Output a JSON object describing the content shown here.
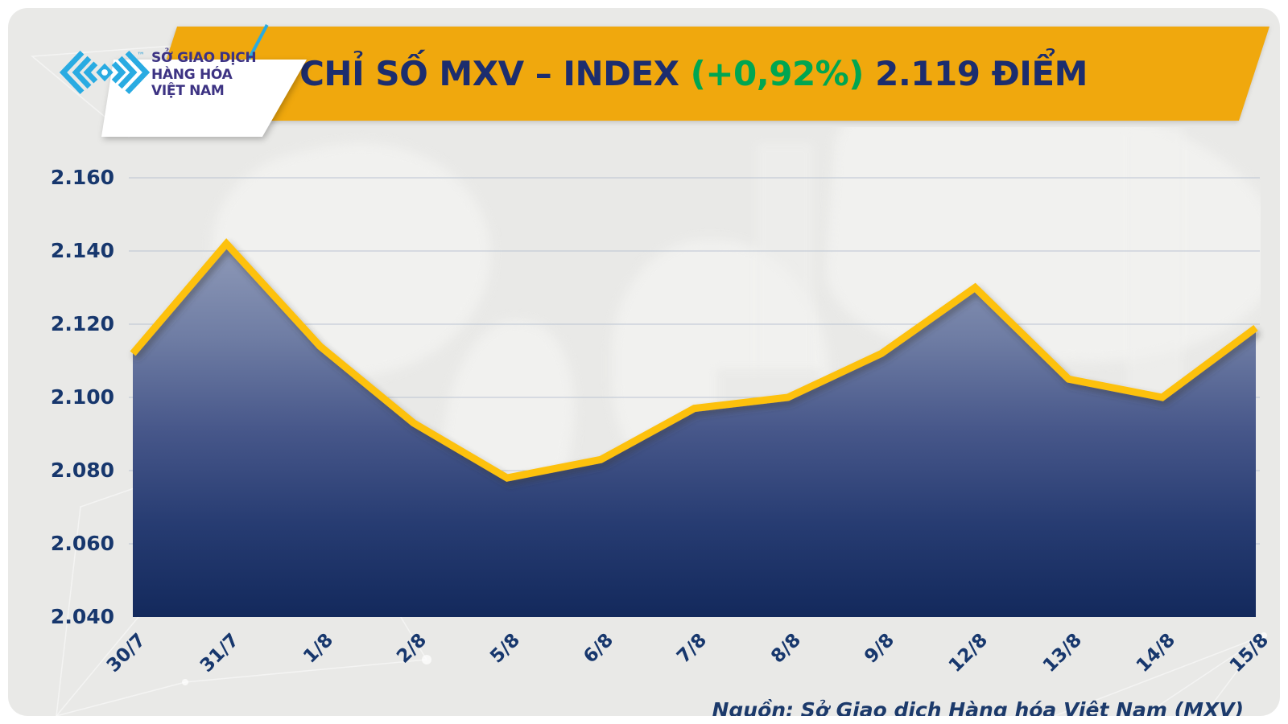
{
  "header": {
    "logo": {
      "line1": "SỞ GIAO DỊCH",
      "line2": "HÀNG HÓA",
      "line3": "VIỆT NAM",
      "tm": "™"
    },
    "title_part1": "CHỈ SỐ MXV – INDEX ",
    "title_change": "(+0,92%)",
    "title_part2": " 2.119 ĐIỂM",
    "banner_color": "#f0a80d",
    "title_color": "#1c2d6e",
    "change_color": "#00a651",
    "logo_cyan": "#29abe2"
  },
  "chart_data": {
    "type": "area",
    "title": "CHỈ SỐ MXV – INDEX (+0,92%) 2.119 ĐIỂM",
    "categories": [
      "30/7",
      "31/7",
      "1/8",
      "2/8",
      "5/8",
      "6/8",
      "7/8",
      "8/8",
      "9/8",
      "12/8",
      "13/8",
      "14/8",
      "15/8"
    ],
    "values": [
      2.112,
      2.142,
      2.114,
      2.093,
      2.078,
      2.083,
      2.097,
      2.1,
      2.112,
      2.13,
      2.105,
      2.1,
      2.119
    ],
    "last_point_label": "2.119",
    "change_percent": "+0,92%",
    "ylim": [
      2.04,
      2.16
    ],
    "ytick_step": 0.02,
    "ytick_labels": [
      "2.160",
      "2.140",
      "2.120",
      "2.100",
      "2.080",
      "2.060",
      "2.040"
    ],
    "xlabel": "",
    "ylabel": "",
    "grid": true,
    "legend": "none",
    "line_color": "#fdc10e",
    "grid_color": "#b6c0d0",
    "axis_label_color": "#17376d",
    "fill_gradient": [
      "#8f9ab8",
      "#6f7da4",
      "#47578a",
      "#273c72",
      "#13295c"
    ]
  },
  "footer": {
    "source": "Nguồn: Sở Giao dịch Hàng hóa Việt Nam (MXV)"
  }
}
